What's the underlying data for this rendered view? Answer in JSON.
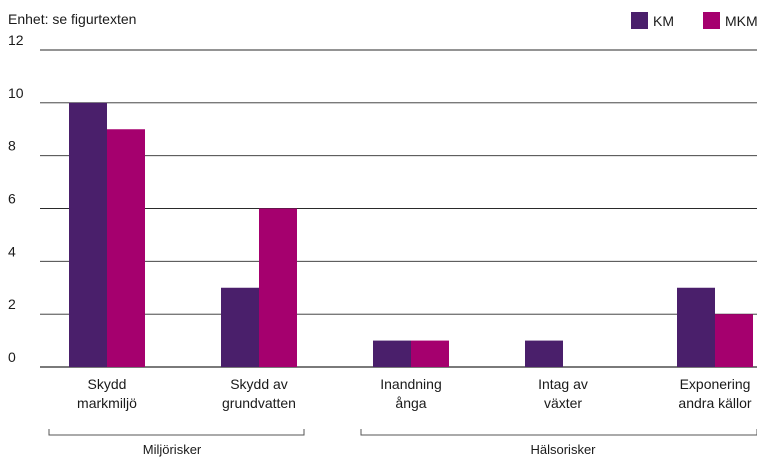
{
  "chart_data": {
    "type": "bar",
    "unit_label": "Enhet: se figurtexten",
    "categories": [
      [
        "Skydd",
        "markmiljö"
      ],
      [
        "Skydd av",
        "grundvatten"
      ],
      [
        "Inandning",
        "ånga"
      ],
      [
        "Intag av",
        "växter"
      ],
      [
        "Exponering",
        "andra källor"
      ]
    ],
    "series": [
      {
        "name": "KM",
        "color": "#4a1f6b",
        "values": [
          10,
          3,
          1,
          1,
          3
        ]
      },
      {
        "name": "MKM",
        "color": "#a5006e",
        "values": [
          9,
          6,
          1,
          0,
          2
        ]
      }
    ],
    "ylim": [
      0,
      12
    ],
    "yticks": [
      "0",
      "2",
      "4",
      "6",
      "8",
      "10",
      "12"
    ],
    "grid": true,
    "legend_position": "top-right",
    "groups": [
      {
        "label": "Miljörisker",
        "from": 0,
        "to": 1
      },
      {
        "label": "Hälsorisker",
        "from": 2,
        "to": 4
      }
    ]
  }
}
